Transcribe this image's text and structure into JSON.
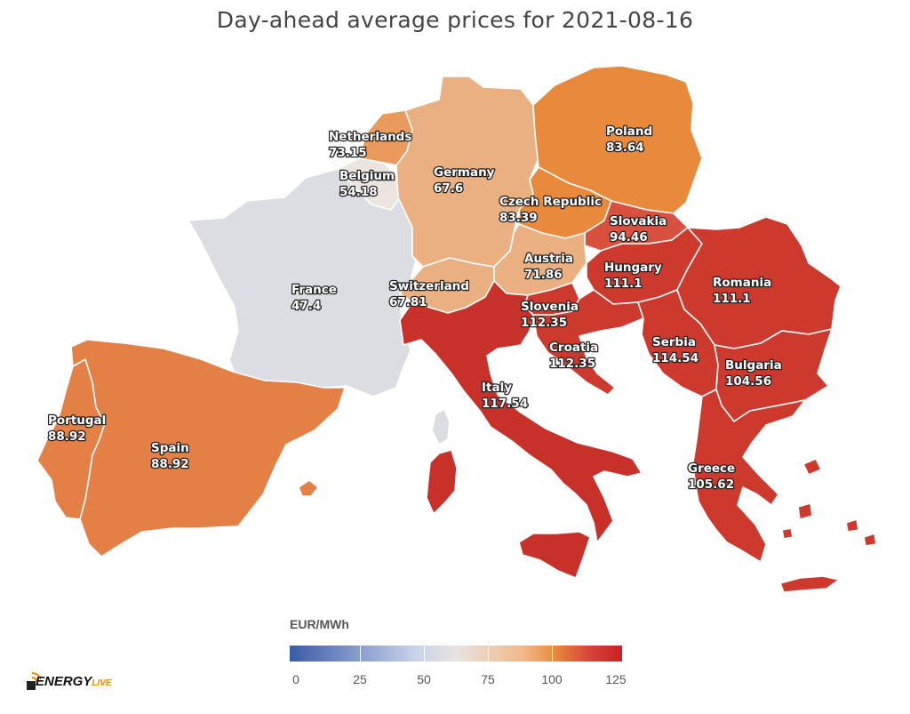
{
  "title": "Day-ahead average prices for 2021-08-16",
  "colors": {
    "france": "#dcdde2",
    "belgium": "#ece4df",
    "germany": "#ebb081",
    "switzerland": "#ebb081",
    "austria": "#ebb081",
    "netherlands": "#ea9a5c",
    "poland": "#e8893c",
    "czech": "#e8893c",
    "iberia": "#e47f45",
    "slovakia": "#d9503e",
    "red": "#cd3a2d",
    "italy": "#c8302a"
  },
  "countries": [
    {
      "key": "netherlands",
      "name": "Netherlands",
      "price": "73.15"
    },
    {
      "key": "belgium",
      "name": "Belgium",
      "price": "54.18"
    },
    {
      "key": "germany",
      "name": "Germany",
      "price": "67.6"
    },
    {
      "key": "poland",
      "name": "Poland",
      "price": "83.64"
    },
    {
      "key": "czech",
      "name": "Czech Republic",
      "price": "83.39"
    },
    {
      "key": "slovakia",
      "name": "Slovakia",
      "price": "94.46"
    },
    {
      "key": "austria",
      "name": "Austria",
      "price": "71.86"
    },
    {
      "key": "hungary",
      "name": "Hungary",
      "price": "111.1"
    },
    {
      "key": "romania",
      "name": "Romania",
      "price": "111.1"
    },
    {
      "key": "france",
      "name": "France",
      "price": "47.4"
    },
    {
      "key": "switzerland",
      "name": "Switzerland",
      "price": "67.81"
    },
    {
      "key": "slovenia",
      "name": "Slovenia",
      "price": "112.35"
    },
    {
      "key": "croatia",
      "name": "Croatia",
      "price": "112.35"
    },
    {
      "key": "serbia",
      "name": "Serbia",
      "price": "114.54"
    },
    {
      "key": "bulgaria",
      "name": "Bulgaria",
      "price": "104.56"
    },
    {
      "key": "italy",
      "name": "Italy",
      "price": "117.54"
    },
    {
      "key": "portugal",
      "name": "Portugal",
      "price": "88.92"
    },
    {
      "key": "spain",
      "name": "Spain",
      "price": "88.92"
    },
    {
      "key": "greece",
      "name": "Greece",
      "price": "105.62"
    }
  ],
  "legend": {
    "title": "EUR/MWh",
    "ticks": [
      "0",
      "25",
      "50",
      "75",
      "100",
      "125"
    ]
  },
  "logo": {
    "main": "ENERGY",
    "sub": "LIVE"
  }
}
